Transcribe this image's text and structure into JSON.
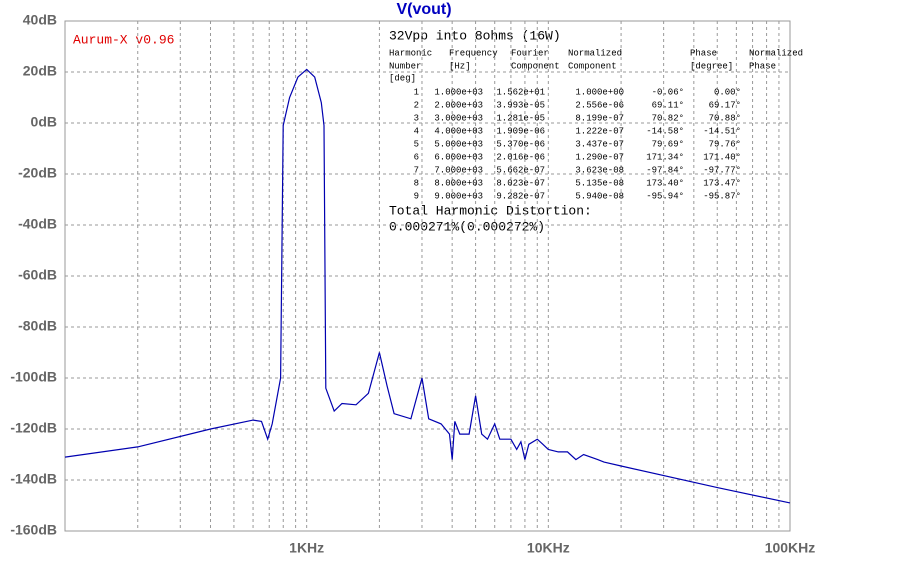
{
  "chart_data": {
    "type": "line",
    "title": "V(vout)",
    "log_x": true,
    "grid": true,
    "xlim": [
      100,
      100000
    ],
    "xticks": [
      {
        "value": 1000,
        "label": "1KHz"
      },
      {
        "value": 10000,
        "label": "10KHz"
      },
      {
        "value": 100000,
        "label": "100KHz"
      }
    ],
    "ylim": [
      -160,
      40
    ],
    "yticks": [
      {
        "value": -160,
        "label": "-160dB"
      },
      {
        "value": -140,
        "label": "-140dB"
      },
      {
        "value": -120,
        "label": "-120dB"
      },
      {
        "value": -100,
        "label": "-100dB"
      },
      {
        "value": -80,
        "label": "-80dB"
      },
      {
        "value": -60,
        "label": "-60dB"
      },
      {
        "value": -40,
        "label": "-40dB"
      },
      {
        "value": -20,
        "label": "-20dB"
      },
      {
        "value": 0,
        "label": "0dB"
      },
      {
        "value": 20,
        "label": "20dB"
      },
      {
        "value": 40,
        "label": "40dB"
      }
    ],
    "series": [
      {
        "color": "#0000b0",
        "x": [
          100,
          200,
          400,
          600,
          650,
          690,
          720,
          780,
          800,
          850,
          920,
          1000,
          1080,
          1150,
          1180,
          1200,
          1300,
          1400,
          1600,
          1800,
          2000,
          2150,
          2300,
          2700,
          3000,
          3200,
          3600,
          3900,
          4000,
          4100,
          4300,
          4700,
          5000,
          5300,
          5600,
          6000,
          6300,
          7000,
          7400,
          7700,
          8000,
          8300,
          9000,
          9500,
          10000,
          11000,
          12000,
          13000,
          14000,
          16000,
          17000,
          20000,
          50000,
          100000
        ],
        "values": [
          -131,
          -127,
          -120,
          -116.5,
          -117,
          -124,
          -118,
          -100,
          -1,
          10,
          18,
          21,
          18,
          8,
          -1,
          -104,
          -113,
          -110,
          -110.5,
          -106,
          -90,
          -103,
          -114,
          -116,
          -100,
          -116,
          -118,
          -122,
          -132,
          -117,
          -122,
          -122,
          -107,
          -122,
          -124,
          -118,
          -124,
          -124,
          -128,
          -125,
          -132,
          -126,
          -124,
          -126,
          -128,
          -129,
          -129,
          -132,
          -130,
          -132,
          -133,
          -134.5,
          -143,
          -149
        ]
      }
    ],
    "annotations": {
      "label": "Aurum-X v0.96",
      "heading": "32Vpp into 8ohms (16W)",
      "table": {
        "header": [
          [
            "Harmonic",
            "Number"
          ],
          [
            "Frequency",
            "[Hz]"
          ],
          [
            "Fourier",
            "Component"
          ],
          [
            "Normalized",
            "Component"
          ],
          [
            "Phase",
            "[degree]"
          ],
          [
            "Normalized",
            "Phase"
          ]
        ],
        "unit_row": "[deg]",
        "rows": [
          [
            "1",
            "1.000e+03",
            "1.562e+01",
            "1.000e+00",
            "-0.06°",
            "0.00°"
          ],
          [
            "2",
            "2.000e+03",
            "3.993e-05",
            "2.556e-06",
            "69.11°",
            "69.17°"
          ],
          [
            "3",
            "3.000e+03",
            "1.281e-05",
            "8.199e-07",
            "70.82°",
            "70.88°"
          ],
          [
            "4",
            "4.000e+03",
            "1.909e-06",
            "1.222e-07",
            "-14.58°",
            "-14.51°"
          ],
          [
            "5",
            "5.000e+03",
            "5.370e-06",
            "3.437e-07",
            "79.69°",
            "79.76°"
          ],
          [
            "6",
            "6.000e+03",
            "2.016e-06",
            "1.290e-07",
            "171.34°",
            "171.40°"
          ],
          [
            "7",
            "7.000e+03",
            "5.662e-07",
            "3.623e-08",
            "-97.84°",
            "-97.77°"
          ],
          [
            "8",
            "8.000e+03",
            "8.023e-07",
            "5.135e-08",
            "173.40°",
            "173.47°"
          ],
          [
            "9",
            "9.000e+03",
            "9.282e-07",
            "5.940e-08",
            "-95.94°",
            "-95.87°"
          ]
        ]
      },
      "thd_label": "Total Harmonic Distortion:",
      "thd_value": "0.000271%(0.000272%)"
    }
  }
}
